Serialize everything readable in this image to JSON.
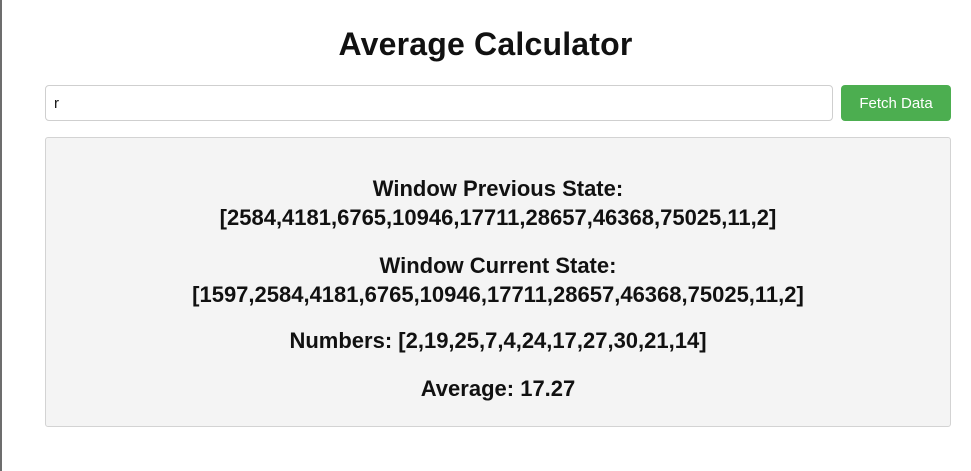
{
  "page": {
    "title": "Average Calculator"
  },
  "search": {
    "value": "r",
    "button_label": "Fetch Data"
  },
  "results": {
    "previous_label": "Window Previous State:",
    "previous_value": "[2584,4181,6765,10946,17711,28657,46368,75025,11,2]",
    "current_label": "Window Current State:",
    "current_value": "[1597,2584,4181,6765,10946,17711,28657,46368,75025,11,2]",
    "numbers_label": "Numbers:",
    "numbers_value": "[2,19,25,7,4,24,17,27,30,21,14]",
    "average_label": "Average:",
    "average_value": "17.27"
  },
  "colors": {
    "button": "#4cae50",
    "panel_background": "#f4f4f4",
    "panel_border": "#d3d3d3"
  }
}
